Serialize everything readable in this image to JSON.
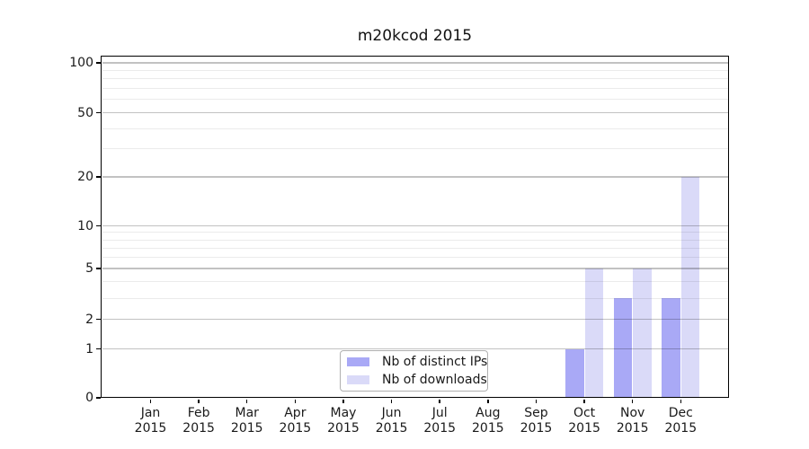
{
  "chart_data": {
    "type": "bar",
    "title": "m20kcod 2015",
    "months": [
      "Jan",
      "Feb",
      "Mar",
      "Apr",
      "May",
      "Jun",
      "Jul",
      "Aug",
      "Sep",
      "Oct",
      "Nov",
      "Dec"
    ],
    "year": "2015",
    "categories": [
      "Jan 2015",
      "Feb 2015",
      "Mar 2015",
      "Apr 2015",
      "May 2015",
      "Jun 2015",
      "Jul 2015",
      "Aug 2015",
      "Sep 2015",
      "Oct 2015",
      "Nov 2015",
      "Dec 2015"
    ],
    "series": [
      {
        "name": "Nb of distinct IPs",
        "color": "#a9a9f6",
        "values": [
          0,
          0,
          0,
          0,
          0,
          0,
          0,
          0,
          0,
          1,
          3,
          3
        ]
      },
      {
        "name": "Nb of downloads",
        "color": "#dadaf8",
        "values": [
          0,
          0,
          0,
          0,
          0,
          0,
          0,
          0,
          0,
          5,
          5,
          20
        ]
      }
    ],
    "y_axis": {
      "scale": "log1p",
      "ticks": [
        0,
        1,
        2,
        5,
        10,
        20,
        50,
        100
      ],
      "minor_gridlines": [
        3,
        4,
        6,
        7,
        8,
        9,
        30,
        40,
        60,
        70,
        80,
        90
      ],
      "ylim": [
        0,
        110
      ]
    },
    "x_axis": {
      "label_lines": 2
    },
    "legend": {
      "position": "lower center"
    },
    "grid": true
  }
}
